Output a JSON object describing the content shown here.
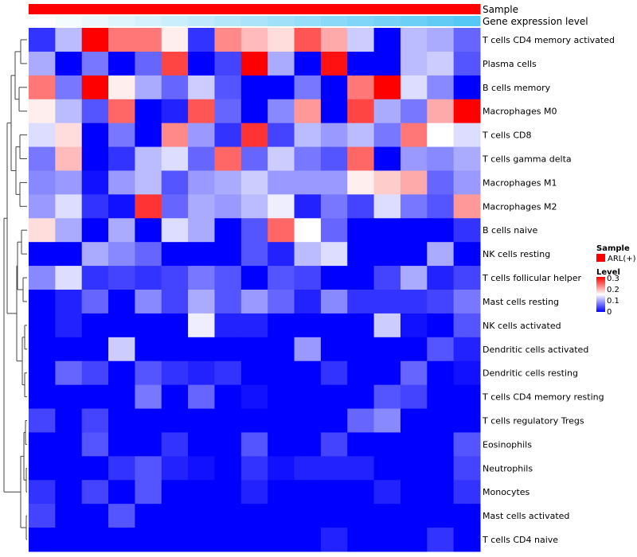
{
  "chart_data": {
    "type": "heatmap",
    "annotation_rows": [
      {
        "label": "Sample",
        "kind": "categorical",
        "color": "#ff0000"
      },
      {
        "label": "Gene expression level",
        "kind": "gradient",
        "from": "#ffffff",
        "to": "#56c8f5"
      }
    ],
    "rows": [
      "T cells CD4 memory activated",
      "Plasma cells",
      "B cells memory",
      "Macrophages M0",
      "T cells CD8",
      "T cells gamma delta",
      "Macrophages M1",
      "Macrophages M2",
      "B cells naive",
      "NK cells resting",
      "T cells follicular helper",
      "Mast cells resting",
      "NK cells activated",
      "Dendritic cells activated",
      "Dendritic cells resting",
      "T cells CD4 memory resting",
      "T cells regulatory  Tregs",
      "Eosinophils",
      "Neutrophils",
      "Monocytes",
      "Mast cells activated",
      "T cells CD4 naive"
    ],
    "n_columns": 17,
    "values": [
      [
        0.03,
        0.11,
        0.3,
        0.23,
        0.23,
        0.16,
        0.03,
        0.22,
        0.19,
        0.17,
        0.25,
        0.2,
        0.12,
        0.0,
        0.11,
        0.1,
        0.06
      ],
      [
        0.1,
        0.0,
        0.07,
        0.0,
        0.06,
        0.26,
        0.0,
        0.04,
        0.3,
        0.1,
        0.0,
        0.29,
        0.0,
        0.0,
        0.11,
        0.12,
        0.05
      ],
      [
        0.23,
        0.07,
        0.3,
        0.16,
        0.1,
        0.06,
        0.12,
        0.05,
        0.0,
        0.0,
        0.07,
        0.0,
        0.23,
        0.3,
        0.13,
        0.08,
        0.0
      ],
      [
        0.16,
        0.11,
        0.05,
        0.24,
        0.0,
        0.02,
        0.25,
        0.06,
        0.0,
        0.08,
        0.21,
        0.0,
        0.26,
        0.1,
        0.07,
        0.2,
        0.3
      ],
      [
        0.13,
        0.17,
        0.0,
        0.07,
        0.0,
        0.22,
        0.09,
        0.03,
        0.27,
        0.04,
        0.11,
        0.09,
        0.11,
        0.07,
        0.23,
        0.15,
        0.13
      ],
      [
        0.07,
        0.19,
        0.0,
        0.03,
        0.11,
        0.13,
        0.06,
        0.24,
        0.06,
        0.12,
        0.07,
        0.05,
        0.24,
        0.0,
        0.09,
        0.08,
        0.1
      ],
      [
        0.08,
        0.09,
        0.01,
        0.09,
        0.11,
        0.05,
        0.09,
        0.1,
        0.12,
        0.09,
        0.09,
        0.09,
        0.16,
        0.18,
        0.2,
        0.06,
        0.09
      ],
      [
        0.09,
        0.13,
        0.03,
        0.01,
        0.27,
        0.06,
        0.1,
        0.09,
        0.11,
        0.14,
        0.02,
        0.07,
        0.04,
        0.13,
        0.07,
        0.05,
        0.21
      ],
      [
        0.17,
        0.1,
        0.0,
        0.1,
        0.0,
        0.13,
        0.1,
        0.0,
        0.05,
        0.24,
        0.15,
        0.06,
        0.0,
        0.0,
        0.0,
        0.0,
        0.03
      ],
      [
        0.0,
        0.0,
        0.1,
        0.08,
        0.06,
        0.0,
        0.0,
        0.0,
        0.05,
        0.02,
        0.11,
        0.13,
        0.0,
        0.0,
        0.0,
        0.1,
        0.0
      ],
      [
        0.08,
        0.13,
        0.03,
        0.04,
        0.03,
        0.04,
        0.07,
        0.05,
        0.0,
        0.05,
        0.04,
        0.0,
        0.0,
        0.04,
        0.1,
        0.02,
        0.04
      ],
      [
        0.0,
        0.02,
        0.06,
        0.0,
        0.08,
        0.04,
        0.1,
        0.05,
        0.09,
        0.06,
        0.02,
        0.08,
        0.03,
        0.03,
        0.03,
        0.04,
        0.07
      ],
      [
        0.0,
        0.02,
        0.0,
        0.0,
        0.0,
        0.0,
        0.14,
        0.02,
        0.02,
        0.0,
        0.0,
        0.0,
        0.0,
        0.12,
        0.01,
        0.0,
        0.05
      ],
      [
        0.0,
        0.0,
        0.0,
        0.12,
        0.0,
        0.0,
        0.0,
        0.0,
        0.0,
        0.0,
        0.09,
        0.0,
        0.0,
        0.0,
        0.0,
        0.05,
        0.02
      ],
      [
        0.0,
        0.06,
        0.04,
        0.0,
        0.05,
        0.03,
        0.02,
        0.03,
        0.0,
        0.0,
        0.0,
        0.03,
        0.0,
        0.0,
        0.06,
        0.0,
        0.01
      ],
      [
        0.0,
        0.0,
        0.0,
        0.0,
        0.07,
        0.0,
        0.06,
        0.0,
        0.01,
        0.0,
        0.0,
        0.0,
        0.0,
        0.05,
        0.04,
        0.0,
        0.0
      ],
      [
        0.04,
        0.0,
        0.04,
        0.0,
        0.0,
        0.0,
        0.0,
        0.0,
        0.0,
        0.0,
        0.0,
        0.0,
        0.06,
        0.08,
        0.0,
        0.0,
        0.0
      ],
      [
        0.0,
        0.0,
        0.05,
        0.0,
        0.0,
        0.03,
        0.0,
        0.0,
        0.05,
        0.0,
        0.0,
        0.04,
        0.0,
        0.0,
        0.0,
        0.0,
        0.05
      ],
      [
        0.0,
        0.0,
        0.0,
        0.03,
        0.05,
        0.02,
        0.01,
        0.0,
        0.03,
        0.01,
        0.02,
        0.02,
        0.02,
        0.0,
        0.0,
        0.0,
        0.04
      ],
      [
        0.03,
        0.0,
        0.04,
        0.0,
        0.05,
        0.0,
        0.0,
        0.0,
        0.02,
        0.0,
        0.0,
        0.0,
        0.0,
        0.02,
        0.0,
        0.0,
        0.03
      ],
      [
        0.04,
        0.0,
        0.0,
        0.05,
        0.0,
        0.0,
        0.0,
        0.0,
        0.0,
        0.0,
        0.0,
        0.0,
        0.0,
        0.0,
        0.0,
        0.0,
        0.0
      ],
      [
        0.0,
        0.0,
        0.0,
        0.0,
        0.0,
        0.0,
        0.0,
        0.0,
        0.0,
        0.0,
        0.0,
        0.02,
        0.0,
        0.0,
        0.0,
        0.03,
        0.0
      ]
    ],
    "color_scale": {
      "min": 0,
      "max": 0.3,
      "low": "#0000ff",
      "mid": "#ffffff",
      "high": "#ff0000"
    },
    "legends": [
      {
        "title": "Sample",
        "items": [
          {
            "label": "ARL(+)",
            "color": "#ff0000"
          }
        ]
      },
      {
        "title": "Level",
        "ticks": [
          "0.3",
          "0.2",
          "0.1",
          "0"
        ]
      }
    ],
    "row_dendrogram": "left"
  }
}
